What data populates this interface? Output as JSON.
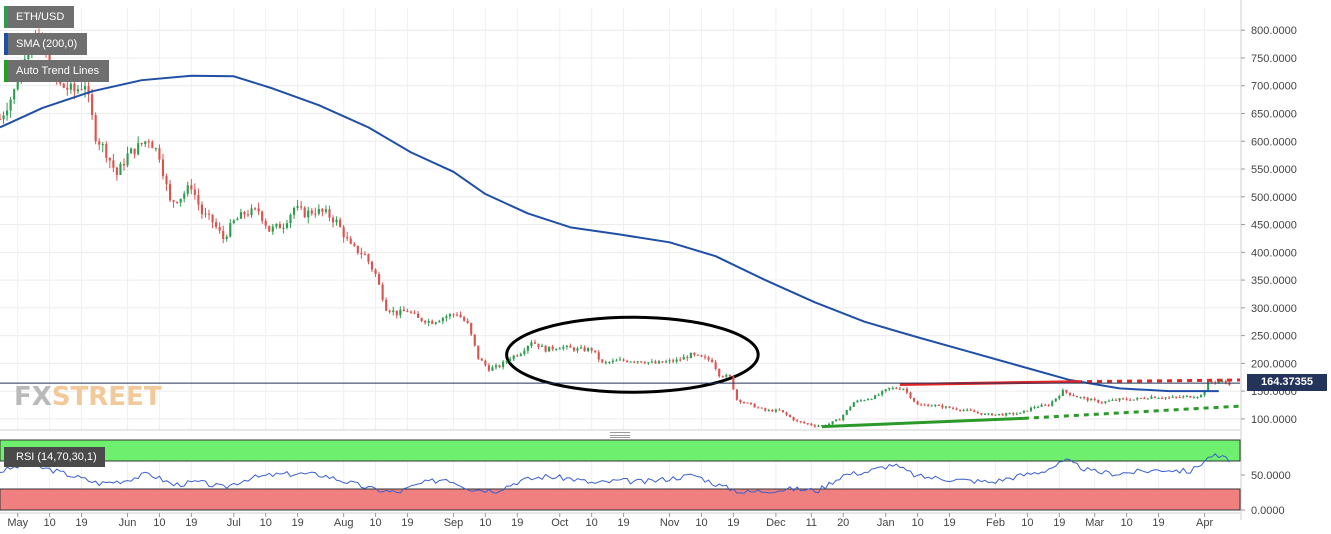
{
  "legend": {
    "symbol": "ETH/USD",
    "sma_label": "SMA (200,0)",
    "trend_label": "Auto Trend Lines"
  },
  "watermark": {
    "part1": "FX",
    "part2": "STREET"
  },
  "price_tag": "164.37355",
  "rsi_label": "RSI (14,70,30,1)",
  "colors": {
    "up_candle": "#2e9c4e",
    "down_candle": "#d9534f",
    "sma_line": "#1f4fa6",
    "resistance": "#e32626",
    "support": "#2b9a2b",
    "rsi_line": "#3a5fcf",
    "overbought_zone": "#6ef06e",
    "oversold_zone": "#f08080",
    "price_line": "#24335a",
    "symbol_swatch": "#2e9c4e",
    "sma_swatch": "#1f4fa6",
    "trend_swatch": "#1fa31f"
  },
  "chart_data": {
    "type": "candlestick",
    "title": "ETH/USD",
    "y_axis": {
      "range": [
        80,
        840
      ],
      "ticks": [
        "800.0000",
        "750.0000",
        "700.0000",
        "650.0000",
        "600.0000",
        "550.0000",
        "500.0000",
        "450.0000",
        "400.0000",
        "350.0000",
        "300.0000",
        "250.0000",
        "200.0000",
        "150.0000",
        "100.0000"
      ],
      "tick_values": [
        800,
        750,
        700,
        650,
        600,
        550,
        500,
        450,
        400,
        350,
        300,
        250,
        200,
        150,
        100
      ]
    },
    "x_axis": {
      "start": "2018-04-26",
      "end": "2019-04-11",
      "labels": [
        {
          "date": "2018-05-01",
          "text": "May"
        },
        {
          "date": "2018-05-10",
          "text": "10"
        },
        {
          "date": "2018-05-19",
          "text": "19"
        },
        {
          "date": "2018-06-01",
          "text": "Jun"
        },
        {
          "date": "2018-06-10",
          "text": "10"
        },
        {
          "date": "2018-06-19",
          "text": "19"
        },
        {
          "date": "2018-07-01",
          "text": "Jul"
        },
        {
          "date": "2018-07-10",
          "text": "10"
        },
        {
          "date": "2018-07-19",
          "text": "19"
        },
        {
          "date": "2018-08-01",
          "text": "Aug"
        },
        {
          "date": "2018-08-10",
          "text": "10"
        },
        {
          "date": "2018-08-19",
          "text": "19"
        },
        {
          "date": "2018-09-01",
          "text": "Sep"
        },
        {
          "date": "2018-09-10",
          "text": "10"
        },
        {
          "date": "2018-09-19",
          "text": "19"
        },
        {
          "date": "2018-10-01",
          "text": "Oct"
        },
        {
          "date": "2018-10-10",
          "text": "10"
        },
        {
          "date": "2018-10-19",
          "text": "19"
        },
        {
          "date": "2018-11-01",
          "text": "Nov"
        },
        {
          "date": "2018-11-10",
          "text": "10"
        },
        {
          "date": "2018-11-19",
          "text": "19"
        },
        {
          "date": "2018-12-01",
          "text": "Dec"
        },
        {
          "date": "2018-12-11",
          "text": "11"
        },
        {
          "date": "2018-12-20",
          "text": "20"
        },
        {
          "date": "2019-01-01",
          "text": "Jan"
        },
        {
          "date": "2019-01-10",
          "text": "10"
        },
        {
          "date": "2019-01-19",
          "text": "19"
        },
        {
          "date": "2019-02-01",
          "text": "Feb"
        },
        {
          "date": "2019-02-10",
          "text": "10"
        },
        {
          "date": "2019-02-19",
          "text": "19"
        },
        {
          "date": "2019-03-01",
          "text": "Mar"
        },
        {
          "date": "2019-03-10",
          "text": "10"
        },
        {
          "date": "2019-03-19",
          "text": "19"
        },
        {
          "date": "2019-04-01",
          "text": "Apr"
        }
      ]
    },
    "price_path": [
      [
        "2018-04-26",
        640
      ],
      [
        "2018-04-30",
        690
      ],
      [
        "2018-05-03",
        760
      ],
      [
        "2018-05-06",
        790
      ],
      [
        "2018-05-09",
        750
      ],
      [
        "2018-05-13",
        700
      ],
      [
        "2018-05-17",
        690
      ],
      [
        "2018-05-20",
        705
      ],
      [
        "2018-05-23",
        610
      ],
      [
        "2018-05-26",
        580
      ],
      [
        "2018-05-29",
        540
      ],
      [
        "2018-06-01",
        575
      ],
      [
        "2018-06-04",
        590
      ],
      [
        "2018-06-07",
        605
      ],
      [
        "2018-06-10",
        575
      ],
      [
        "2018-06-13",
        490
      ],
      [
        "2018-06-16",
        500
      ],
      [
        "2018-06-19",
        520
      ],
      [
        "2018-06-22",
        470
      ],
      [
        "2018-06-25",
        455
      ],
      [
        "2018-06-28",
        425
      ],
      [
        "2018-07-01",
        455
      ],
      [
        "2018-07-04",
        470
      ],
      [
        "2018-07-08",
        475
      ],
      [
        "2018-07-11",
        440
      ],
      [
        "2018-07-15",
        450
      ],
      [
        "2018-07-18",
        480
      ],
      [
        "2018-07-21",
        470
      ],
      [
        "2018-07-24",
        475
      ],
      [
        "2018-07-27",
        470
      ],
      [
        "2018-07-30",
        455
      ],
      [
        "2018-08-03",
        410
      ],
      [
        "2018-08-07",
        395
      ],
      [
        "2018-08-10",
        360
      ],
      [
        "2018-08-13",
        300
      ],
      [
        "2018-08-16",
        290
      ],
      [
        "2018-08-19",
        295
      ],
      [
        "2018-08-22",
        280
      ],
      [
        "2018-08-26",
        275
      ],
      [
        "2018-08-30",
        285
      ],
      [
        "2018-09-02",
        290
      ],
      [
        "2018-09-05",
        270
      ],
      [
        "2018-09-08",
        210
      ],
      [
        "2018-09-11",
        190
      ],
      [
        "2018-09-14",
        195
      ],
      [
        "2018-09-17",
        210
      ],
      [
        "2018-09-20",
        220
      ],
      [
        "2018-09-23",
        240
      ],
      [
        "2018-09-27",
        225
      ],
      [
        "2018-10-01",
        230
      ],
      [
        "2018-10-06",
        225
      ],
      [
        "2018-10-10",
        225
      ],
      [
        "2018-10-13",
        200
      ],
      [
        "2018-10-18",
        205
      ],
      [
        "2018-10-23",
        205
      ],
      [
        "2018-10-28",
        200
      ],
      [
        "2018-11-03",
        205
      ],
      [
        "2018-11-07",
        215
      ],
      [
        "2018-11-10",
        210
      ],
      [
        "2018-11-13",
        205
      ],
      [
        "2018-11-15",
        180
      ],
      [
        "2018-11-18",
        175
      ],
      [
        "2018-11-20",
        135
      ],
      [
        "2018-11-24",
        125
      ],
      [
        "2018-11-28",
        115
      ],
      [
        "2018-12-02",
        115
      ],
      [
        "2018-12-07",
        95
      ],
      [
        "2018-12-12",
        88
      ],
      [
        "2018-12-15",
        88
      ],
      [
        "2018-12-19",
        100
      ],
      [
        "2018-12-23",
        130
      ],
      [
        "2018-12-26",
        135
      ],
      [
        "2018-12-29",
        140
      ],
      [
        "2019-01-02",
        155
      ],
      [
        "2019-01-06",
        155
      ],
      [
        "2019-01-10",
        125
      ],
      [
        "2019-01-14",
        125
      ],
      [
        "2019-01-19",
        120
      ],
      [
        "2019-01-24",
        115
      ],
      [
        "2019-01-29",
        108
      ],
      [
        "2019-02-03",
        108
      ],
      [
        "2019-02-08",
        110
      ],
      [
        "2019-02-12",
        122
      ],
      [
        "2019-02-16",
        125
      ],
      [
        "2019-02-20",
        150
      ],
      [
        "2019-02-24",
        140
      ],
      [
        "2019-02-27",
        135
      ],
      [
        "2019-03-03",
        130
      ],
      [
        "2019-03-08",
        135
      ],
      [
        "2019-03-12",
        135
      ],
      [
        "2019-03-17",
        140
      ],
      [
        "2019-03-22",
        138
      ],
      [
        "2019-03-27",
        140
      ],
      [
        "2019-03-31",
        142
      ],
      [
        "2019-04-02",
        165
      ],
      [
        "2019-04-05",
        168
      ],
      [
        "2019-04-08",
        164
      ]
    ],
    "sma_200": [
      [
        "2018-04-26",
        625
      ],
      [
        "2018-05-08",
        660
      ],
      [
        "2018-05-22",
        690
      ],
      [
        "2018-06-05",
        710
      ],
      [
        "2018-06-19",
        718
      ],
      [
        "2018-07-01",
        717
      ],
      [
        "2018-07-12",
        695
      ],
      [
        "2018-07-25",
        665
      ],
      [
        "2018-08-08",
        625
      ],
      [
        "2018-08-20",
        580
      ],
      [
        "2018-09-01",
        545
      ],
      [
        "2018-09-10",
        505
      ],
      [
        "2018-09-22",
        470
      ],
      [
        "2018-10-04",
        445
      ],
      [
        "2018-10-18",
        432
      ],
      [
        "2018-11-01",
        418
      ],
      [
        "2018-11-14",
        393
      ],
      [
        "2018-11-28",
        350
      ],
      [
        "2018-12-12",
        310
      ],
      [
        "2018-12-26",
        275
      ],
      [
        "2019-01-10",
        247
      ],
      [
        "2019-01-24",
        222
      ],
      [
        "2019-02-08",
        195
      ],
      [
        "2019-02-22",
        170
      ],
      [
        "2019-03-08",
        155
      ],
      [
        "2019-03-22",
        150
      ],
      [
        "2019-04-05",
        150
      ]
    ],
    "trend_lines": {
      "resistance": {
        "from": [
          "2019-01-05",
          162
        ],
        "to": [
          "2019-02-24",
          167
        ],
        "extension_to": [
          "2019-04-11",
          170
        ],
        "color_key": "resistance"
      },
      "support": {
        "from": [
          "2018-12-14",
          86
        ],
        "to": [
          "2019-02-09",
          101
        ],
        "extension_to": [
          "2019-04-11",
          123
        ],
        "color_key": "support"
      }
    },
    "highlight_ellipse": {
      "x_range": [
        "2018-09-16",
        "2018-11-26"
      ],
      "y_range": [
        148,
        283
      ]
    },
    "current_price": 164.37355,
    "rsi": {
      "label": "RSI (14,70,30,1)",
      "params": [
        14,
        70,
        30,
        1
      ],
      "y_axis": {
        "range": [
          0,
          100
        ],
        "ticks": [
          "50.0000",
          "0.0000"
        ],
        "tick_values": [
          50,
          0
        ]
      },
      "overbought": 70,
      "oversold": 30,
      "values": [
        [
          "2018-04-26",
          55
        ],
        [
          "2018-05-03",
          65
        ],
        [
          "2018-05-10",
          58
        ],
        [
          "2018-05-17",
          48
        ],
        [
          "2018-05-24",
          38
        ],
        [
          "2018-05-31",
          42
        ],
        [
          "2018-06-07",
          52
        ],
        [
          "2018-06-14",
          36
        ],
        [
          "2018-06-21",
          40
        ],
        [
          "2018-06-28",
          32
        ],
        [
          "2018-07-05",
          45
        ],
        [
          "2018-07-12",
          50
        ],
        [
          "2018-07-19",
          52
        ],
        [
          "2018-07-26",
          50
        ],
        [
          "2018-08-02",
          40
        ],
        [
          "2018-08-09",
          30
        ],
        [
          "2018-08-16",
          25
        ],
        [
          "2018-08-23",
          38
        ],
        [
          "2018-08-30",
          45
        ],
        [
          "2018-09-06",
          30
        ],
        [
          "2018-09-13",
          28
        ],
        [
          "2018-09-20",
          42
        ],
        [
          "2018-09-27",
          48
        ],
        [
          "2018-10-04",
          45
        ],
        [
          "2018-10-11",
          38
        ],
        [
          "2018-10-18",
          42
        ],
        [
          "2018-10-25",
          40
        ],
        [
          "2018-11-01",
          45
        ],
        [
          "2018-11-08",
          50
        ],
        [
          "2018-11-15",
          35
        ],
        [
          "2018-11-22",
          25
        ],
        [
          "2018-11-29",
          28
        ],
        [
          "2018-12-06",
          30
        ],
        [
          "2018-12-13",
          28
        ],
        [
          "2018-12-20",
          50
        ],
        [
          "2018-12-27",
          55
        ],
        [
          "2019-01-03",
          65
        ],
        [
          "2019-01-10",
          48
        ],
        [
          "2019-01-17",
          45
        ],
        [
          "2019-01-24",
          42
        ],
        [
          "2019-01-31",
          40
        ],
        [
          "2019-02-07",
          48
        ],
        [
          "2019-02-14",
          55
        ],
        [
          "2019-02-21",
          70
        ],
        [
          "2019-02-28",
          55
        ],
        [
          "2019-03-07",
          52
        ],
        [
          "2019-03-14",
          55
        ],
        [
          "2019-03-21",
          58
        ],
        [
          "2019-03-28",
          55
        ],
        [
          "2019-04-03",
          78
        ],
        [
          "2019-04-08",
          72
        ]
      ]
    }
  }
}
